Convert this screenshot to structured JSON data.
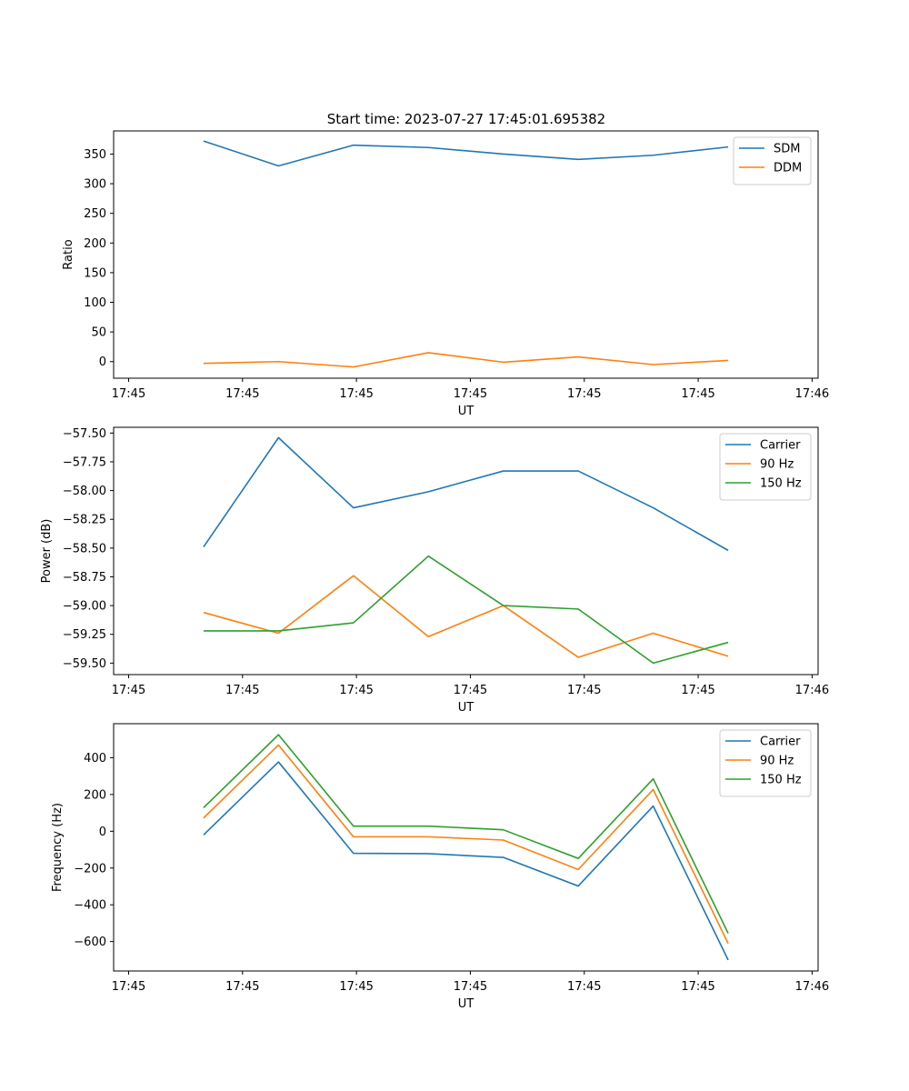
{
  "figure_title": "Start time: 2023-07-27 17:45:01.695382",
  "colors": {
    "blue": "#1f77b4",
    "orange": "#ff7f0e",
    "green": "#2ca02c"
  },
  "chart_data": [
    {
      "type": "line",
      "title": "Start time: 2023-07-27 17:45:01.695382",
      "xlabel": "UT",
      "ylabel": "Ratio",
      "x": [
        0.5,
        1.0,
        1.5,
        2.0,
        2.5,
        3.0,
        3.5,
        4.0
      ],
      "xlim": [
        -0.1,
        4.6
      ],
      "xticks": [
        0,
        0.76,
        1.52,
        2.28,
        3.04,
        3.8,
        4.56
      ],
      "xtick_labels": [
        "17:45",
        "17:45",
        "17:45",
        "17:45",
        "17:45",
        "17:45",
        "17:46"
      ],
      "ylim": [
        -28,
        389
      ],
      "yticks": [
        0,
        50,
        100,
        150,
        200,
        250,
        300,
        350
      ],
      "ytick_labels": [
        "0",
        "50",
        "100",
        "150",
        "200",
        "250",
        "300",
        "350"
      ],
      "legend": "top-right",
      "series": [
        {
          "name": "SDM",
          "color": "#1f77b4",
          "values": [
            372,
            330,
            365,
            361,
            350,
            341,
            348,
            362
          ]
        },
        {
          "name": "DDM",
          "color": "#ff7f0e",
          "values": [
            -3,
            0,
            -9,
            15,
            -1,
            8,
            -5,
            2
          ]
        }
      ]
    },
    {
      "type": "line",
      "title": "",
      "xlabel": "UT",
      "ylabel": "Power (dB)",
      "x": [
        0.5,
        1.0,
        1.5,
        2.0,
        2.5,
        3.0,
        3.5,
        4.0
      ],
      "xlim": [
        -0.1,
        4.6
      ],
      "xticks": [
        0,
        0.76,
        1.52,
        2.28,
        3.04,
        3.8,
        4.56
      ],
      "xtick_labels": [
        "17:45",
        "17:45",
        "17:45",
        "17:45",
        "17:45",
        "17:45",
        "17:46"
      ],
      "ylim": [
        -59.6,
        -57.45
      ],
      "yticks": [
        -57.5,
        -57.75,
        -58.0,
        -58.25,
        -58.5,
        -58.75,
        -59.0,
        -59.25,
        -59.5
      ],
      "ytick_labels": [
        "−57.50",
        "−57.75",
        "−58.00",
        "−58.25",
        "−58.50",
        "−58.75",
        "−59.00",
        "−59.25",
        "−59.50"
      ],
      "legend": "top-right",
      "series": [
        {
          "name": "Carrier",
          "color": "#1f77b4",
          "values": [
            -58.49,
            -57.54,
            -58.15,
            -58.01,
            -57.83,
            -57.83,
            -58.15,
            -58.52
          ]
        },
        {
          "name": "90 Hz",
          "color": "#ff7f0e",
          "values": [
            -59.06,
            -59.24,
            -58.74,
            -59.27,
            -59.0,
            -59.45,
            -59.24,
            -59.44
          ]
        },
        {
          "name": "150 Hz",
          "color": "#2ca02c",
          "values": [
            -59.22,
            -59.22,
            -59.15,
            -58.57,
            -59.0,
            -59.03,
            -59.5,
            -59.32
          ]
        }
      ]
    },
    {
      "type": "line",
      "title": "",
      "xlabel": "UT",
      "ylabel": "Frequency (Hz)",
      "x": [
        0.5,
        1.0,
        1.5,
        2.0,
        2.5,
        3.0,
        3.5,
        4.0
      ],
      "xlim": [
        -0.1,
        4.6
      ],
      "xticks": [
        0,
        0.76,
        1.52,
        2.28,
        3.04,
        3.8,
        4.56
      ],
      "xtick_labels": [
        "17:45",
        "17:45",
        "17:45",
        "17:45",
        "17:45",
        "17:45",
        "17:46"
      ],
      "ylim": [
        -760,
        585
      ],
      "yticks": [
        400,
        200,
        0,
        -200,
        -400,
        -600
      ],
      "ytick_labels": [
        "400",
        "200",
        "0",
        "−200",
        "−400",
        "−600"
      ],
      "legend": "top-right",
      "series": [
        {
          "name": "Carrier",
          "color": "#1f77b4",
          "values": [
            -20,
            377,
            -120,
            -122,
            -142,
            -298,
            137,
            -700
          ]
        },
        {
          "name": "90 Hz",
          "color": "#ff7f0e",
          "values": [
            72,
            469,
            -30,
            -30,
            -48,
            -208,
            227,
            -610
          ]
        },
        {
          "name": "150 Hz",
          "color": "#2ca02c",
          "values": [
            128,
            525,
            28,
            28,
            8,
            -148,
            285,
            -555
          ]
        }
      ]
    }
  ]
}
